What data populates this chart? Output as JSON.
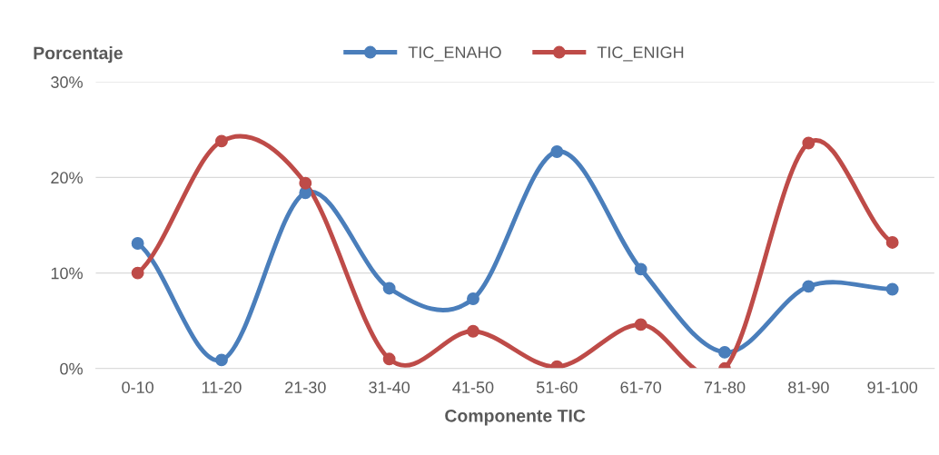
{
  "chart_data": {
    "type": "line",
    "xlabel": "Componente TIC",
    "ylabel": "Porcentaje",
    "categories": [
      "0-10",
      "11-20",
      "21-30",
      "31-40",
      "41-50",
      "51-60",
      "61-70",
      "71-80",
      "81-90",
      "91-100"
    ],
    "series": [
      {
        "name": "TIC_ENAHO",
        "color": "#4a7ebb",
        "values": [
          13.1,
          0.9,
          18.4,
          8.4,
          7.3,
          22.7,
          10.4,
          1.7,
          8.6,
          8.3
        ]
      },
      {
        "name": "TIC_ENIGH",
        "color": "#be4b48",
        "values": [
          10.0,
          23.8,
          19.4,
          1.0,
          3.9,
          0.2,
          4.6,
          0,
          23.6,
          13.2
        ]
      }
    ],
    "ylim": [
      0,
      30
    ],
    "yticks": [
      {
        "value": 0,
        "label": "0%"
      },
      {
        "value": 10,
        "label": "10%"
      },
      {
        "value": 20,
        "label": "20%"
      },
      {
        "value": 30,
        "label": "30%"
      }
    ],
    "grid": "y",
    "legend": "top",
    "marker": "circle",
    "line_style": "solid"
  }
}
